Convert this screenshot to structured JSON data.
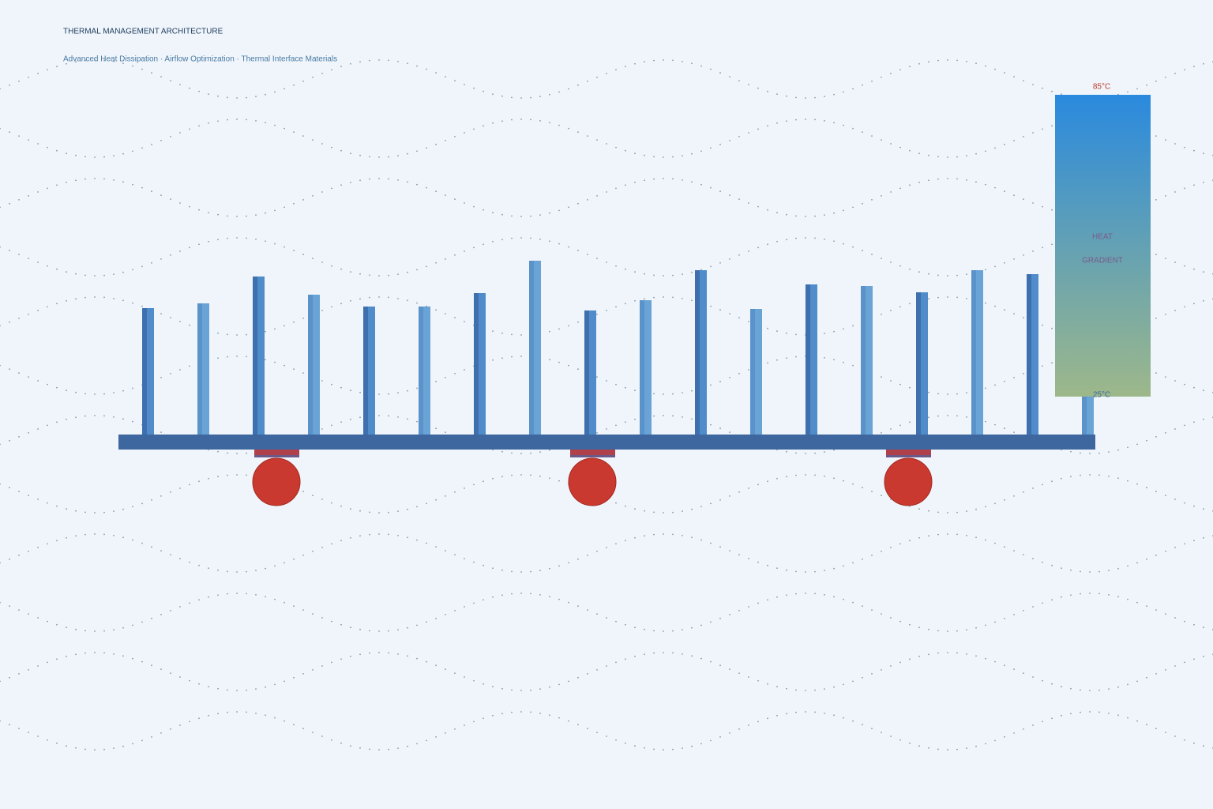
{
  "header": {
    "title": "THERMAL MANAGEMENT ARCHITECTURE",
    "subtitle": "Advanced Heat Dissipation · Airflow Optimization · Thermal Interface Materials"
  },
  "gradient": {
    "top_label": "85°C",
    "label_line1": "HEAT",
    "label_line2": "GRADIENT",
    "bottom_label": "25°C"
  }
}
